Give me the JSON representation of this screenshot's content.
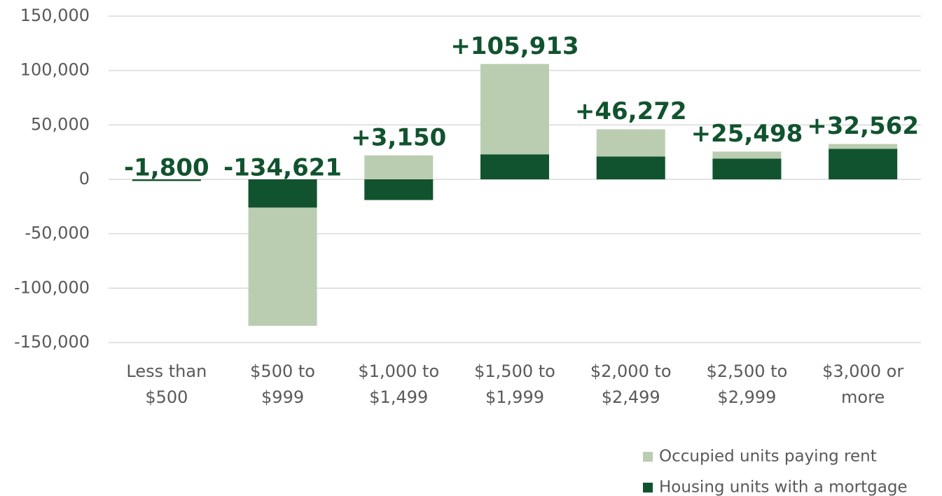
{
  "chart_data": {
    "type": "bar",
    "categories": [
      "Less than $500",
      "$500 to $999",
      "$1,000 to $1,499",
      "$1,500 to $1,999",
      "$2,000 to $2,499",
      "$2,500 to $2,999",
      "$3,000 or more"
    ],
    "series": [
      {
        "name": "Housing units with a mortgage",
        "color": "#11532f",
        "values": [
          -1500,
          -26000,
          -19000,
          23000,
          21000,
          19000,
          28000
        ]
      },
      {
        "name": "Occupied units paying rent",
        "color": "#bacdb1",
        "values": [
          -300,
          -108600,
          22000,
          83000,
          25000,
          6500,
          4500
        ]
      }
    ],
    "totals": {
      "values": [
        -1800,
        -134621,
        3150,
        105913,
        46272,
        25498,
        32562
      ],
      "value_labels": [
        "-1,800",
        "-134,621",
        "+3,150",
        "+105,913",
        "+46,272",
        "+25,498",
        "+32,562"
      ]
    },
    "stacked": true,
    "ylim": [
      -150000,
      150000
    ],
    "yticks": [
      {
        "value": 150000,
        "label": "150,000"
      },
      {
        "value": 100000,
        "label": "100,000"
      },
      {
        "value": 50000,
        "label": "50,000"
      },
      0,
      {
        "value": -50000,
        "label": "-50,000"
      },
      {
        "value": -100000,
        "label": "-100,000"
      },
      {
        "value": -150000,
        "label": "-150,000"
      }
    ],
    "grid": true,
    "legend": "bottom-right"
  }
}
